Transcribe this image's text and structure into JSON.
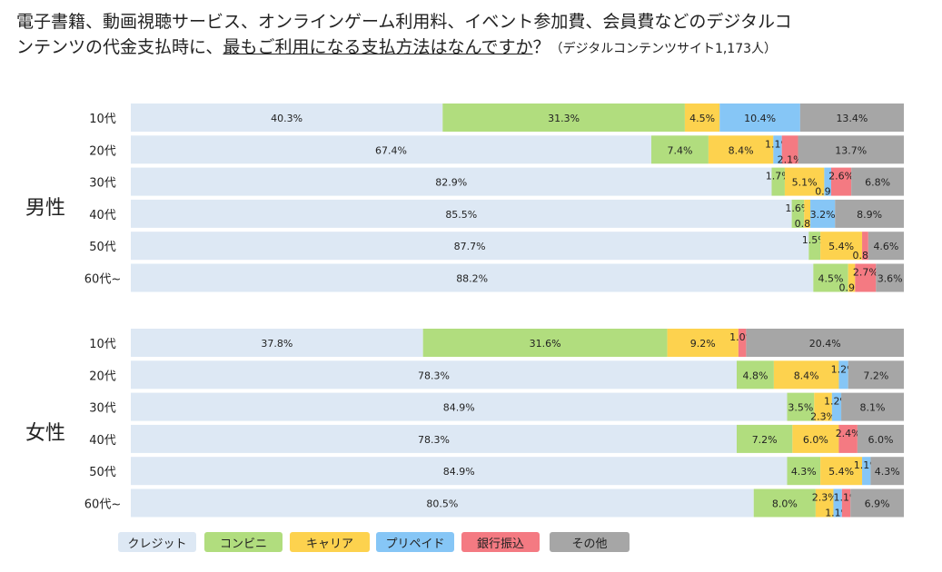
{
  "title": {
    "line1": "電子書籍、動画視聴サービス、オンラインゲーム利用料、イベント参加費、会員費などのデジタルコ",
    "line2_pre": "ンテンツの代金支払時に、",
    "line2_underlined": "最もご利用になる支払方法はなんですか",
    "line2_post": "？",
    "note": "（デジタルコンテンツサイト1,173人）"
  },
  "colors": {
    "クレジット": "#dde8f4",
    "コンビニ": "#b1dd7e",
    "キャリア": "#fdd24e",
    "プリペイド": "#86c6f6",
    "銀行振込": "#f47a82",
    "その他": "#a6a6a6"
  },
  "chart_data": {
    "type": "bar",
    "orientation": "horizontal",
    "stacked": true,
    "unit": "%",
    "xlim": [
      0,
      100
    ],
    "series_names": [
      "クレジット",
      "コンビニ",
      "キャリア",
      "プリペイド",
      "銀行振込",
      "その他"
    ],
    "groups": [
      {
        "label": "男性",
        "categories": [
          "10代",
          "20代",
          "30代",
          "40代",
          "50代",
          "60代~"
        ],
        "values": [
          [
            40.3,
            31.3,
            4.5,
            10.4,
            0,
            13.4
          ],
          [
            67.4,
            7.4,
            8.4,
            1.1,
            2.1,
            13.7
          ],
          [
            82.9,
            1.7,
            5.1,
            0.9,
            2.6,
            6.8
          ],
          [
            85.5,
            1.6,
            0.8,
            3.2,
            0,
            8.9
          ],
          [
            87.7,
            1.5,
            5.4,
            0,
            0.8,
            4.6
          ],
          [
            88.2,
            4.5,
            0.9,
            0,
            2.7,
            3.6
          ]
        ]
      },
      {
        "label": "女性",
        "categories": [
          "10代",
          "20代",
          "30代",
          "40代",
          "50代",
          "60代~"
        ],
        "values": [
          [
            37.8,
            31.6,
            9.2,
            0,
            1.0,
            20.4
          ],
          [
            78.3,
            4.8,
            8.4,
            1.2,
            0,
            7.2
          ],
          [
            84.9,
            3.5,
            2.3,
            1.2,
            0,
            8.1
          ],
          [
            78.3,
            7.2,
            6.0,
            0,
            2.4,
            6.0
          ],
          [
            84.9,
            4.3,
            5.4,
            1.1,
            0,
            4.3
          ],
          [
            80.5,
            8.0,
            2.3,
            1.1,
            1.1,
            6.9
          ]
        ]
      }
    ]
  }
}
